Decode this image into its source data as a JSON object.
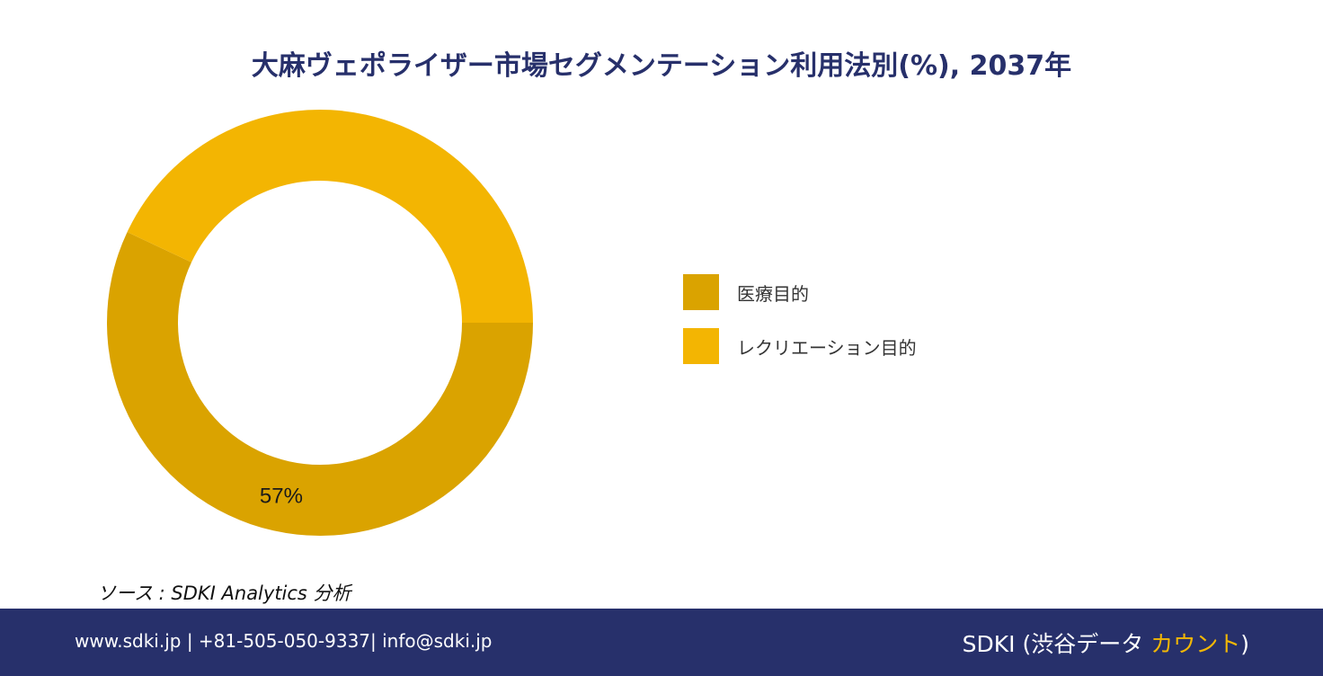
{
  "title": "大麻ヴェポライザー市場セグメンテーション利用法別(%), 2037年",
  "source": "ソース : SDKI Analytics 分析",
  "footer": {
    "contact": "www.sdki.jp | +81-505-050-9337| info@sdki.jp",
    "brand_prefix": "SDKI (渋谷データ ",
    "brand_accent": "カウント",
    "brand_suffix": ")"
  },
  "colors": {
    "medical": "#daa300",
    "recreational": "#f3b502",
    "label": "#1a1a1a",
    "brand_navy": "#27306b",
    "brand_gold": "#f2b705"
  },
  "chart_data": {
    "type": "pie",
    "variant": "donut",
    "categories": [
      "医療目的",
      "レクリエーション目的"
    ],
    "values": [
      57,
      43
    ],
    "data_labels": [
      "57%",
      ""
    ],
    "legend_position": "right"
  }
}
